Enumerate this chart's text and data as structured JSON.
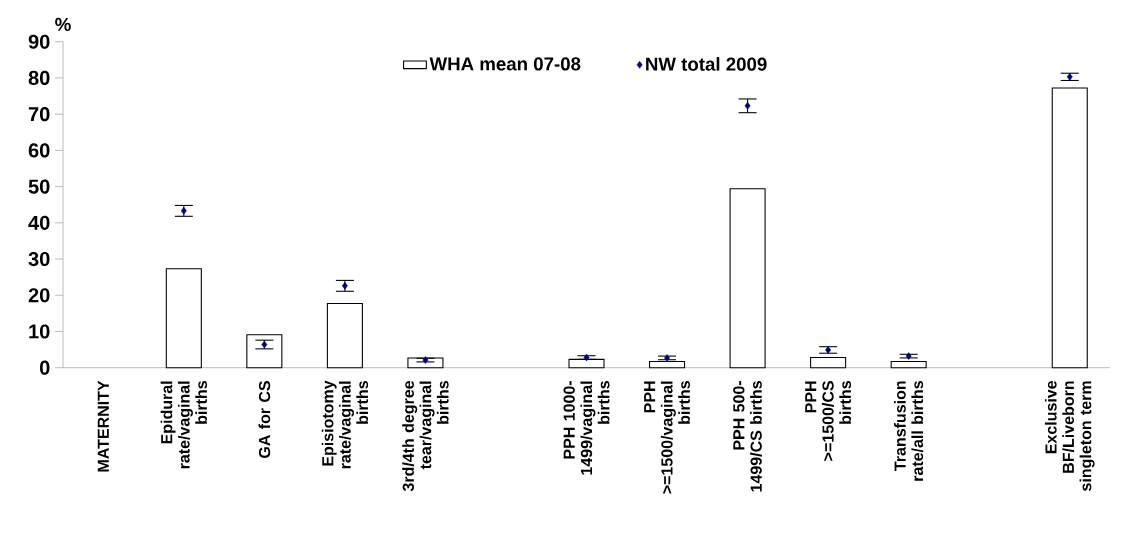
{
  "chart_data": {
    "type": "bar",
    "ylabel": "%",
    "categories": [
      "MATERNITY",
      "Epidural rate/vaginal births",
      "GA for CS",
      "Episiotomy rate/vaginal births",
      "3rd/4th degree tear/vaginal births",
      null,
      "PPH 1000-1499/vaginal births",
      "PPH >=1500/vaginal births",
      "PPH 500-1499/CS births",
      "PPH >=1500/CS births",
      "Transfusion rate/all births",
      null,
      "Exclusive BF/Liveborn singleton term"
    ],
    "series": [
      {
        "name": "WHA mean 07-08",
        "color": "#ffffff",
        "values": [
          null,
          27.3,
          9.1,
          17.7,
          2.7,
          null,
          2.3,
          1.7,
          49.4,
          2.8,
          1.7,
          null,
          77.2
        ]
      },
      {
        "name": "NW total 2009",
        "type": "scatter",
        "color": "#000080",
        "marker": "diamond",
        "values": [
          null,
          43.3,
          6.4,
          22.6,
          2.1,
          null,
          2.8,
          2.7,
          72.3,
          4.9,
          3.2,
          null,
          80.3
        ],
        "errors": [
          null,
          1.5,
          1.2,
          1.5,
          0.5,
          null,
          0.5,
          0.5,
          1.9,
          0.9,
          0.5,
          null,
          1.0
        ]
      }
    ],
    "ylim": [
      0,
      90
    ],
    "yticks": [
      0,
      10,
      20,
      30,
      40,
      50,
      60,
      70,
      80,
      90
    ],
    "legend": "top",
    "grid": false
  }
}
